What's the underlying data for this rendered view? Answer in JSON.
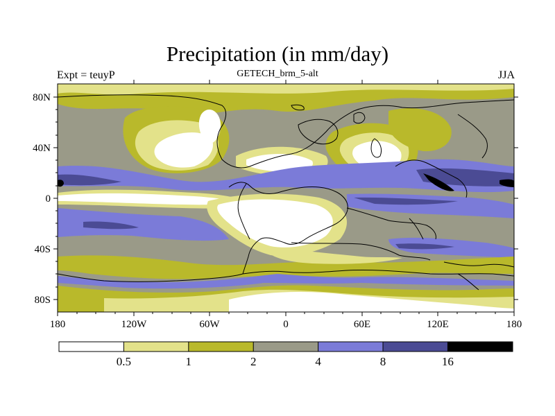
{
  "header": {
    "title": "Precipitation (in mm/day)",
    "subtitle": "GETECH_brm_5-alt",
    "left_label": "Expt = teuyP",
    "right_label": "JJA"
  },
  "map": {
    "lon_ticks": [
      "180",
      "120W",
      "60W",
      "0",
      "60E",
      "120E",
      "180"
    ],
    "lat_ticks": [
      "80N",
      "40N",
      "0",
      "40S",
      "80S"
    ]
  },
  "legend": {
    "labels": [
      "0.5",
      "1",
      "2",
      "4",
      "8",
      "16"
    ],
    "colors": [
      "#ffffff",
      "#e3e28a",
      "#b9b92b",
      "#9a9a88",
      "#7b7bd8",
      "#4b4b94",
      "#000000"
    ]
  }
}
